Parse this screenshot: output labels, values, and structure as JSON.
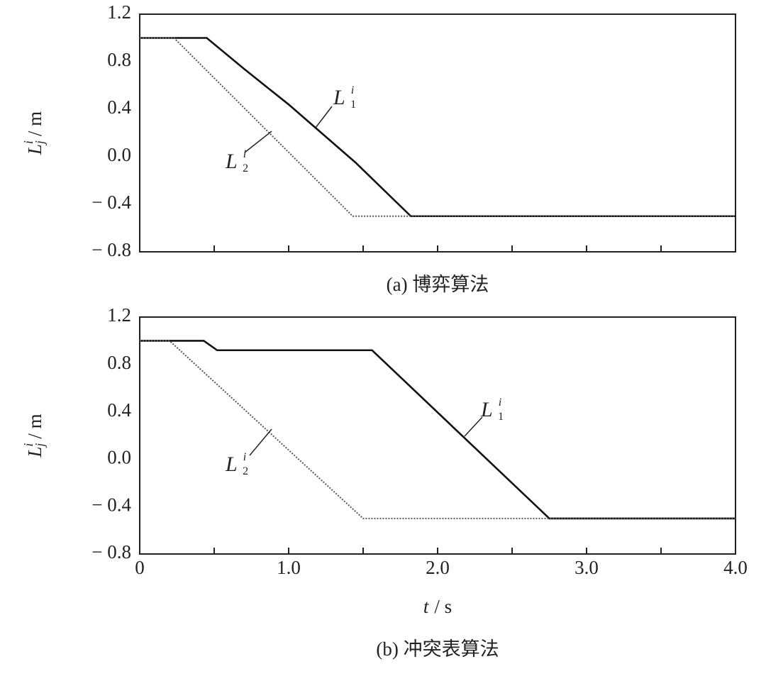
{
  "chart_data": [
    {
      "type": "line",
      "caption": "(a) 博弈算法",
      "ylabel": {
        "symbol": "L",
        "sub": "j",
        "sup": "i",
        "unit": "/ m"
      },
      "xlim": [
        0,
        4
      ],
      "ylim": [
        -0.8,
        1.2
      ],
      "yticks": [
        {
          "value": 1.2,
          "label": "1.2"
        },
        {
          "value": 0.8,
          "label": "0.8"
        },
        {
          "value": 0.4,
          "label": "0.4"
        },
        {
          "value": 0,
          "label": "0.0"
        },
        {
          "value": -0.4,
          "label": "− 0.4"
        },
        {
          "value": -0.8,
          "label": "− 0.8"
        }
      ],
      "xtick_marks": [
        0.5,
        1,
        1.5,
        2,
        2.5,
        3,
        3.5
      ],
      "series": [
        {
          "symbol": "L",
          "sub": "1",
          "sup": "i",
          "color": "#111111",
          "linestyle": "solid",
          "x": [
            0,
            0.45,
            0.7,
            1.0,
            1.45,
            1.82,
            4.0
          ],
          "values": [
            1.0,
            1.0,
            0.74,
            0.44,
            -0.05,
            -0.5,
            -0.5
          ]
        },
        {
          "symbol": "L",
          "sub": "2",
          "sup": "i",
          "color": "#555555",
          "linestyle": "dotted",
          "x": [
            0,
            0.23,
            1.43,
            4.0
          ],
          "values": [
            1.0,
            1.0,
            -0.5,
            -0.5
          ]
        }
      ]
    },
    {
      "type": "line",
      "caption": "(b) 冲突表算法",
      "ylabel": {
        "symbol": "L",
        "sub": "j",
        "sup": "i",
        "unit": "/ m"
      },
      "xlabel": {
        "symbol": "t",
        "unit": "/ s"
      },
      "xlim": [
        0,
        4
      ],
      "ylim": [
        -0.8,
        1.2
      ],
      "yticks": [
        {
          "value": 1.2,
          "label": "1.2"
        },
        {
          "value": 0.8,
          "label": "0.8"
        },
        {
          "value": 0.4,
          "label": "0.4"
        },
        {
          "value": 0,
          "label": "0.0"
        },
        {
          "value": -0.4,
          "label": "− 0.4"
        },
        {
          "value": -0.8,
          "label": "− 0.8"
        }
      ],
      "xticks": [
        0,
        {
          "value": 1,
          "label": "1.0"
        },
        {
          "value": 2,
          "label": "2.0"
        },
        {
          "value": 3,
          "label": "3.0"
        },
        {
          "value": 4,
          "label": "4.0"
        }
      ],
      "xtick_marks": [
        0.5,
        1.5,
        2.5,
        3.5
      ],
      "series": [
        {
          "symbol": "L",
          "sub": "1",
          "sup": "i",
          "color": "#111111",
          "linestyle": "solid",
          "x": [
            0,
            0.43,
            0.52,
            1.56,
            2.75,
            4.0
          ],
          "values": [
            1.0,
            1.0,
            0.92,
            0.92,
            -0.5,
            -0.5
          ]
        },
        {
          "symbol": "L",
          "sub": "2",
          "sup": "i",
          "color": "#555555",
          "linestyle": "dotted",
          "x": [
            0,
            0.2,
            1.5,
            4.0
          ],
          "values": [
            1.0,
            1.0,
            -0.5,
            -0.5
          ]
        }
      ]
    }
  ]
}
